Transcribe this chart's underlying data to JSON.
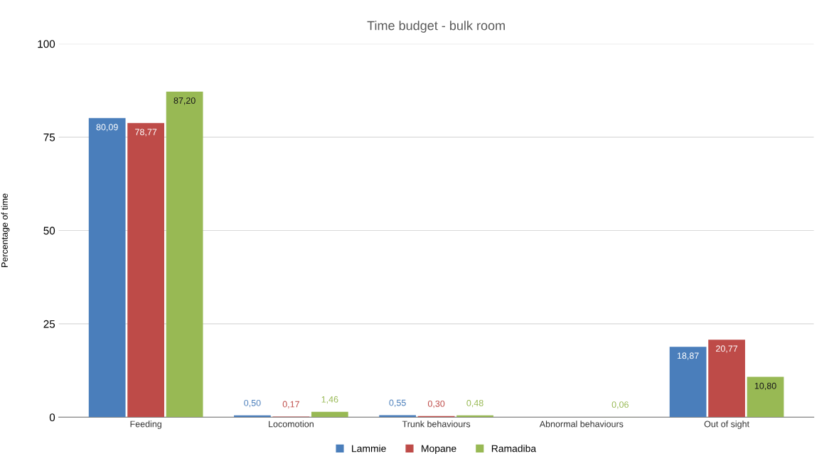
{
  "chart_data": {
    "type": "bar",
    "title": "Time budget - bulk room",
    "ylabel": "Percentage of time",
    "categories": [
      "Feeding",
      "Locomotion",
      "Trunk behaviours",
      "Abnormal behaviours",
      "Out of sight"
    ],
    "series": [
      {
        "name": "Lammie",
        "color": "#4a7ebb",
        "values": [
          80.09,
          0.5,
          0.55,
          null,
          18.87
        ],
        "value_labels": [
          "80,09",
          "0,50",
          "0,55",
          null,
          "18,87"
        ]
      },
      {
        "name": "Mopane",
        "color": "#be4b48",
        "values": [
          78.77,
          0.17,
          0.3,
          null,
          20.77
        ],
        "value_labels": [
          "78,77",
          "0,17",
          "0,30",
          null,
          "20,77"
        ]
      },
      {
        "name": "Ramadiba",
        "color": "#98b954",
        "values": [
          87.2,
          1.46,
          0.48,
          0.06,
          10.8
        ],
        "value_labels": [
          "87,20",
          "1,46",
          "0,48",
          "0,06",
          "10,80"
        ]
      }
    ],
    "ylim": [
      0,
      100
    ],
    "yticks": [
      0,
      25,
      50,
      75,
      100
    ],
    "grid": "y",
    "legend": "bottom"
  }
}
